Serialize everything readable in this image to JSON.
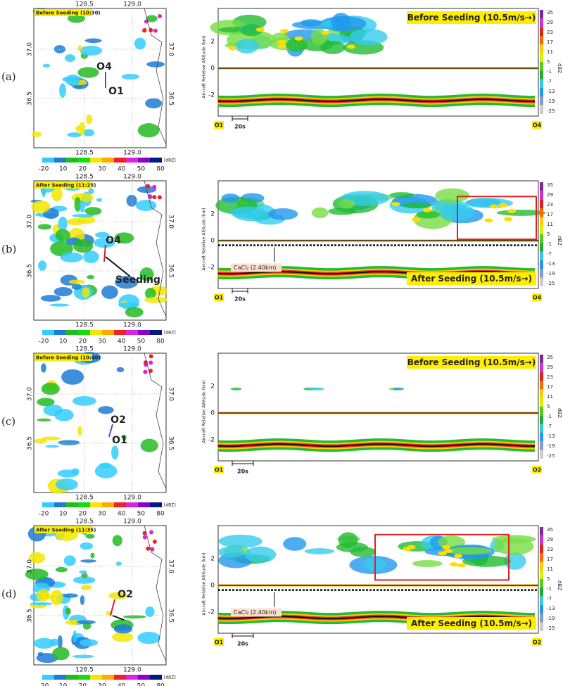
{
  "map_lon_ticks": [
    "128.5",
    "129.0"
  ],
  "map_lat_ticks": [
    "37.0",
    "36.5"
  ],
  "map_colorbar": {
    "ticks": [
      "-20",
      "10",
      "20",
      "30",
      "40",
      "50",
      "80"
    ],
    "unit": "[dBZ]"
  },
  "profile_yticks": [
    "2",
    "0",
    "-2"
  ],
  "profile_y_label": "Aircraft Relative Altitude (km)",
  "profile_colorbar": {
    "ticks": [
      "35",
      "29",
      "23",
      "17",
      "11",
      "5",
      "-1",
      "-7",
      "-13",
      "-19",
      "-25"
    ],
    "unit": "dBZ"
  },
  "interval": "20s",
  "panels": [
    {
      "label": "(a)",
      "map": {
        "title": "Before Seeding (10:30)",
        "points": [
          "O4",
          "O1"
        ]
      },
      "profile": {
        "title": "Before Seeding (10.5m/s→)",
        "start": "O1",
        "end": "O4"
      }
    },
    {
      "label": "(b)",
      "map": {
        "title": "After Seeding (11:25)",
        "points": [
          "O4",
          "Seeding"
        ]
      },
      "profile": {
        "title": "After Seeding (10.5m/s→)",
        "start": "O1",
        "end": "O4",
        "annotation": "CaCl₂ (2.40km)"
      }
    },
    {
      "label": "(c)",
      "map": {
        "title": "Before Seeding (10:40)",
        "points": [
          "O2",
          "O1"
        ]
      },
      "profile": {
        "title": "Before Seeding (10.5m/s→)",
        "start": "O1",
        "end": "O2"
      }
    },
    {
      "label": "(d)",
      "map": {
        "title": "After Seeding (11:35)",
        "points": [
          "O2"
        ]
      },
      "profile": {
        "title": "After Seeding (10.5m/s→)",
        "start": "O1",
        "end": "O2",
        "annotation": "CaCl₂ (2.40km)"
      }
    }
  ]
}
